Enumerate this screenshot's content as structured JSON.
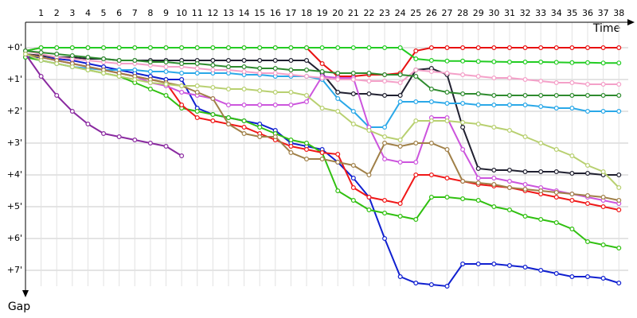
{
  "chart_data": {
    "type": "line",
    "x_label": "Time",
    "y_label": "Gap",
    "y_inverted": true,
    "grid": true,
    "x": [
      0,
      1,
      2,
      3,
      4,
      5,
      6,
      7,
      8,
      9,
      10,
      11,
      12,
      13,
      14,
      15,
      16,
      17,
      18,
      19,
      20,
      21,
      22,
      23,
      24,
      25,
      26,
      27,
      28,
      29,
      30,
      31,
      32,
      33,
      34,
      35,
      36,
      37,
      38
    ],
    "xlim": [
      0,
      38.6
    ],
    "xticks": [
      1,
      2,
      3,
      4,
      5,
      6,
      7,
      8,
      9,
      10,
      11,
      12,
      13,
      14,
      15,
      16,
      17,
      18,
      19,
      20,
      21,
      22,
      23,
      24,
      25,
      26,
      27,
      28,
      29,
      30,
      31,
      32,
      33,
      34,
      35,
      36,
      37,
      38
    ],
    "ylim": [
      -0.8,
      7.5
    ],
    "yticks": [
      {
        "value": 0,
        "label": "+0'"
      },
      {
        "value": 1,
        "label": "+1'"
      },
      {
        "value": 2,
        "label": "+2'"
      },
      {
        "value": 3,
        "label": "+3'"
      },
      {
        "value": 4,
        "label": "+4'"
      },
      {
        "value": 5,
        "label": "+5'"
      },
      {
        "value": 6,
        "label": "+6'"
      },
      {
        "value": 7,
        "label": "+7'"
      }
    ],
    "series": [
      {
        "color": "#e81010",
        "values": [
          0.1,
          0,
          0,
          0,
          0,
          0,
          0,
          0,
          0,
          0,
          0,
          0,
          0,
          0,
          0,
          0,
          0,
          0,
          0,
          0.5,
          0.9,
          0.9,
          0.85,
          0.85,
          0.8,
          0.1,
          0,
          0,
          0,
          0,
          0,
          0,
          0,
          0,
          0,
          0,
          0,
          0,
          0
        ]
      },
      {
        "color": "#22cc22",
        "values": [
          0.1,
          0,
          0,
          0,
          0,
          0,
          0,
          0,
          0,
          0,
          0,
          0,
          0,
          0,
          0,
          0,
          0,
          0,
          0,
          0,
          0,
          0,
          0,
          0,
          0,
          0.35,
          0.4,
          0.42,
          0.42,
          0.43,
          0.44,
          0.45,
          0.45,
          0.45,
          0.46,
          0.47,
          0.47,
          0.48,
          0.48
        ]
      },
      {
        "color": "#202030",
        "values": [
          0.2,
          0.25,
          0.3,
          0.3,
          0.35,
          0.35,
          0.4,
          0.4,
          0.4,
          0.4,
          0.4,
          0.4,
          0.4,
          0.4,
          0.4,
          0.4,
          0.4,
          0.4,
          0.4,
          0.8,
          1.4,
          1.45,
          1.45,
          1.5,
          1.5,
          0.7,
          0.65,
          0.85,
          2.5,
          3.8,
          3.85,
          3.85,
          3.9,
          3.9,
          3.9,
          3.95,
          3.95,
          4.0,
          4.0
        ]
      },
      {
        "color": "#1020d0",
        "values": [
          0.3,
          0.3,
          0.35,
          0.4,
          0.5,
          0.6,
          0.7,
          0.8,
          0.9,
          1.0,
          1.0,
          1.9,
          2.1,
          2.2,
          2.3,
          2.4,
          2.6,
          3.0,
          3.1,
          3.2,
          3.6,
          4.1,
          4.7,
          6.0,
          7.2,
          7.4,
          7.45,
          7.5,
          6.8,
          6.8,
          6.8,
          6.85,
          6.9,
          7.0,
          7.1,
          7.2,
          7.2,
          7.25,
          7.4
        ]
      },
      {
        "color": "#30c010",
        "values": [
          0.3,
          0.4,
          0.5,
          0.6,
          0.7,
          0.8,
          0.9,
          1.1,
          1.3,
          1.5,
          1.9,
          2.0,
          2.1,
          2.2,
          2.3,
          2.5,
          2.7,
          2.9,
          3.0,
          3.3,
          4.5,
          4.8,
          5.1,
          5.2,
          5.3,
          5.4,
          4.7,
          4.7,
          4.75,
          4.8,
          5.0,
          5.1,
          5.3,
          5.4,
          5.5,
          5.7,
          6.1,
          6.2,
          6.3
        ]
      },
      {
        "color": "#f01818",
        "values": [
          0.2,
          0.3,
          0.4,
          0.5,
          0.6,
          0.7,
          0.8,
          0.9,
          1.0,
          1.1,
          1.8,
          2.2,
          2.3,
          2.4,
          2.5,
          2.7,
          2.9,
          3.1,
          3.2,
          3.3,
          3.35,
          4.4,
          4.7,
          4.8,
          4.9,
          4.0,
          4.0,
          4.1,
          4.2,
          4.3,
          4.35,
          4.4,
          4.5,
          4.6,
          4.7,
          4.8,
          4.9,
          5.0,
          5.1
        ]
      },
      {
        "color": "#8a2aa0",
        "values": [
          0.2,
          0.9,
          1.5,
          2.0,
          2.4,
          2.7,
          2.8,
          2.9,
          3.0,
          3.1,
          3.4,
          null,
          null,
          null,
          null,
          null,
          null,
          null,
          null,
          null,
          null,
          null,
          null,
          null,
          null,
          null,
          null,
          null,
          null,
          null,
          null,
          null,
          null,
          null,
          null,
          null,
          null,
          null,
          null
        ]
      },
      {
        "color": "#2aa8e8",
        "values": [
          0.2,
          0.4,
          0.5,
          0.6,
          0.65,
          0.7,
          0.7,
          0.7,
          0.75,
          0.75,
          0.8,
          0.8,
          0.8,
          0.8,
          0.85,
          0.85,
          0.9,
          0.9,
          0.9,
          1.0,
          1.6,
          2.0,
          2.5,
          2.5,
          1.7,
          1.7,
          1.7,
          1.75,
          1.75,
          1.8,
          1.8,
          1.8,
          1.8,
          1.85,
          1.9,
          1.9,
          2.0,
          2.0,
          2.0
        ]
      },
      {
        "color": "#cc55dd",
        "values": [
          0.2,
          0.3,
          0.4,
          0.5,
          0.6,
          0.7,
          0.8,
          0.9,
          1.1,
          1.2,
          1.4,
          1.5,
          1.6,
          1.8,
          1.8,
          1.8,
          1.8,
          1.8,
          1.7,
          0.9,
          0.95,
          0.95,
          2.5,
          3.5,
          3.6,
          3.6,
          2.2,
          2.2,
          3.2,
          4.1,
          4.1,
          4.2,
          4.3,
          4.4,
          4.5,
          4.6,
          4.7,
          4.8,
          4.9
        ]
      },
      {
        "color": "#f4a0c8",
        "values": [
          0.1,
          0.2,
          0.3,
          0.35,
          0.4,
          0.45,
          0.5,
          0.5,
          0.55,
          0.6,
          0.6,
          0.65,
          0.7,
          0.7,
          0.75,
          0.8,
          0.8,
          0.85,
          0.9,
          0.95,
          1.0,
          1.0,
          1.05,
          1.05,
          1.1,
          0.7,
          0.75,
          0.8,
          0.85,
          0.9,
          0.95,
          0.95,
          1.0,
          1.05,
          1.1,
          1.1,
          1.15,
          1.15,
          1.15
        ]
      },
      {
        "color": "#2e8b2e",
        "values": [
          0.1,
          0.15,
          0.2,
          0.25,
          0.3,
          0.35,
          0.4,
          0.4,
          0.45,
          0.45,
          0.5,
          0.5,
          0.55,
          0.6,
          0.6,
          0.65,
          0.65,
          0.7,
          0.7,
          0.75,
          0.8,
          0.8,
          0.8,
          0.85,
          0.85,
          0.9,
          1.3,
          1.4,
          1.45,
          1.45,
          1.5,
          1.5,
          1.5,
          1.5,
          1.5,
          1.5,
          1.5,
          1.5,
          1.5
        ]
      },
      {
        "color": "#a08048",
        "values": [
          0.2,
          0.3,
          0.4,
          0.5,
          0.6,
          0.7,
          0.8,
          0.9,
          1.0,
          1.1,
          1.2,
          1.4,
          1.6,
          2.4,
          2.7,
          2.8,
          2.8,
          3.3,
          3.5,
          3.5,
          3.6,
          3.7,
          4.0,
          3.0,
          3.1,
          3.0,
          3.0,
          3.2,
          4.2,
          4.25,
          4.3,
          4.4,
          4.45,
          4.5,
          4.55,
          4.6,
          4.65,
          4.7,
          4.8
        ]
      },
      {
        "color": "#b8d070",
        "values": [
          0.2,
          0.4,
          0.5,
          0.6,
          0.7,
          0.8,
          0.9,
          1.0,
          1.1,
          1.15,
          1.2,
          1.2,
          1.25,
          1.3,
          1.3,
          1.35,
          1.4,
          1.4,
          1.5,
          1.9,
          2.0,
          2.4,
          2.6,
          2.8,
          2.9,
          2.3,
          2.3,
          2.3,
          2.35,
          2.4,
          2.5,
          2.6,
          2.8,
          3.0,
          3.2,
          3.4,
          3.7,
          3.9,
          4.4
        ]
      }
    ]
  }
}
